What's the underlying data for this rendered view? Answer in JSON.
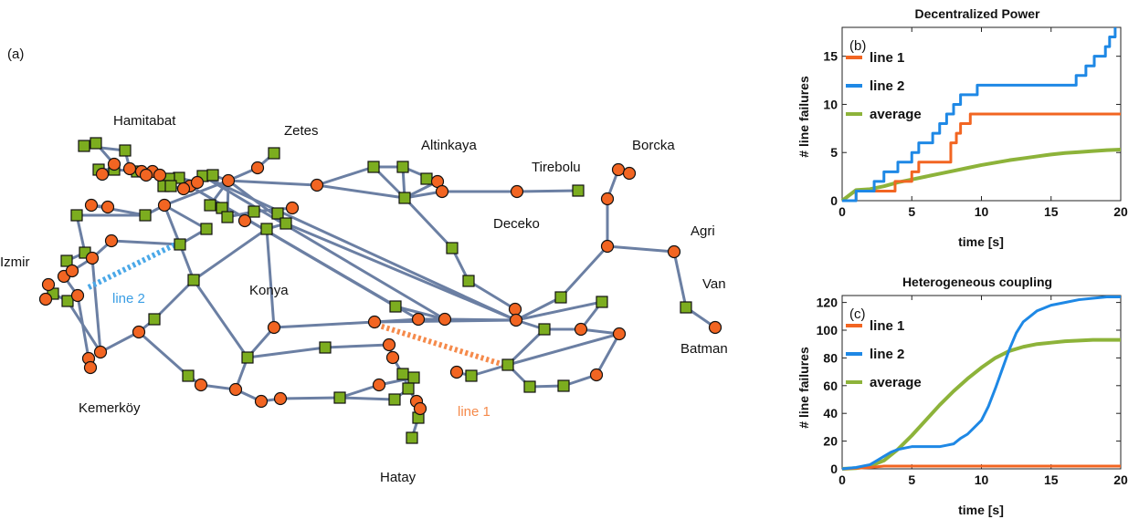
{
  "panel_a": {
    "label": "(a)",
    "cities": [
      "Hamitabat",
      "Zetes",
      "Altinkaya",
      "Tirebolu",
      "Borcka",
      "Deceko",
      "Agri",
      "Van",
      "Batman",
      "Izmir",
      "Konya",
      "Kemerköy",
      "Hatay"
    ],
    "line1_label": "line 1",
    "line2_label": "line 2",
    "colors": {
      "edge": "#6b7fa3",
      "square": "#7cad1f",
      "circle": "#f26522",
      "line1": "#f58a4b",
      "line2": "#4aa8e8"
    }
  },
  "chart_data": [
    {
      "type": "line",
      "panel": "(b)",
      "title": "Decentralized Power",
      "xlabel": "time [s]",
      "ylabel": "# line failures",
      "xlim": [
        0,
        20
      ],
      "ylim": [
        0,
        18
      ],
      "xticks": [
        0,
        5,
        10,
        15,
        20
      ],
      "yticks": [
        0,
        5,
        10,
        15
      ],
      "legend_position": "top-left",
      "series": [
        {
          "name": "line 1",
          "color": "#f26522",
          "step": true,
          "x": [
            0,
            1,
            3.8,
            5,
            5.5,
            6.7,
            7.8,
            8.2,
            8.5,
            9.2,
            20
          ],
          "y": [
            0,
            1,
            2,
            3,
            4,
            4,
            6,
            7,
            8,
            9,
            9
          ]
        },
        {
          "name": "line 2",
          "color": "#1e88e5",
          "step": true,
          "x": [
            0,
            1,
            2.3,
            3,
            4,
            5,
            5.5,
            6.5,
            7,
            7.5,
            8,
            8.5,
            9,
            9.7,
            16.8,
            17.5,
            17.8,
            18.1,
            18.4,
            18.6,
            18.9,
            19.2,
            19.4,
            19.6
          ],
          "y": [
            0,
            1,
            2,
            3,
            4,
            5,
            6,
            7,
            8,
            9,
            10,
            11,
            11,
            12,
            13,
            14,
            14,
            15,
            15,
            15,
            16,
            17,
            17,
            18
          ]
        },
        {
          "name": "average",
          "color": "#8db33a",
          "step": false,
          "x": [
            0,
            1,
            2,
            3,
            4,
            5,
            6,
            7,
            8,
            9,
            10,
            11,
            12,
            13,
            14,
            15,
            16,
            17,
            18,
            19,
            20
          ],
          "y": [
            0,
            1.1,
            1.2,
            1.5,
            1.9,
            2.2,
            2.5,
            2.8,
            3.1,
            3.4,
            3.7,
            3.95,
            4.2,
            4.4,
            4.6,
            4.8,
            4.95,
            5.05,
            5.15,
            5.25,
            5.3
          ]
        }
      ]
    },
    {
      "type": "line",
      "panel": "(c)",
      "title": "Heterogeneous coupling",
      "xlabel": "time [s]",
      "ylabel": "# line failures",
      "xlim": [
        0,
        20
      ],
      "ylim": [
        0,
        125
      ],
      "xticks": [
        0,
        5,
        10,
        15,
        20
      ],
      "yticks": [
        0,
        20,
        40,
        60,
        80,
        100,
        120
      ],
      "legend_position": "top-left",
      "series": [
        {
          "name": "line 1",
          "color": "#f26522",
          "step": false,
          "x": [
            0,
            2,
            3,
            20
          ],
          "y": [
            0,
            1,
            2,
            2
          ]
        },
        {
          "name": "line 2",
          "color": "#1e88e5",
          "step": false,
          "x": [
            0,
            1,
            2,
            2.5,
            3,
            3.5,
            4,
            4.5,
            5,
            6,
            7,
            7.5,
            8,
            8.5,
            9,
            9.5,
            10,
            10.5,
            11,
            11.5,
            12,
            12.5,
            13,
            13.5,
            14,
            15,
            16,
            17,
            18,
            19,
            20
          ],
          "y": [
            0,
            1,
            3,
            6,
            9,
            12,
            14,
            15,
            16,
            16,
            16,
            17,
            18,
            22,
            25,
            30,
            35,
            45,
            58,
            72,
            86,
            98,
            106,
            110,
            114,
            118,
            120,
            122,
            123,
            124,
            124
          ]
        },
        {
          "name": "average",
          "color": "#8db33a",
          "step": false,
          "x": [
            0,
            1,
            2,
            3,
            4,
            5,
            6,
            7,
            8,
            9,
            10,
            11,
            12,
            13,
            14,
            15,
            16,
            17,
            18,
            19,
            20
          ],
          "y": [
            0,
            0.5,
            2,
            6,
            14,
            24,
            35,
            46,
            56,
            65,
            73,
            80,
            85,
            88,
            90,
            91,
            92,
            92.5,
            93,
            93,
            93
          ]
        }
      ]
    }
  ]
}
